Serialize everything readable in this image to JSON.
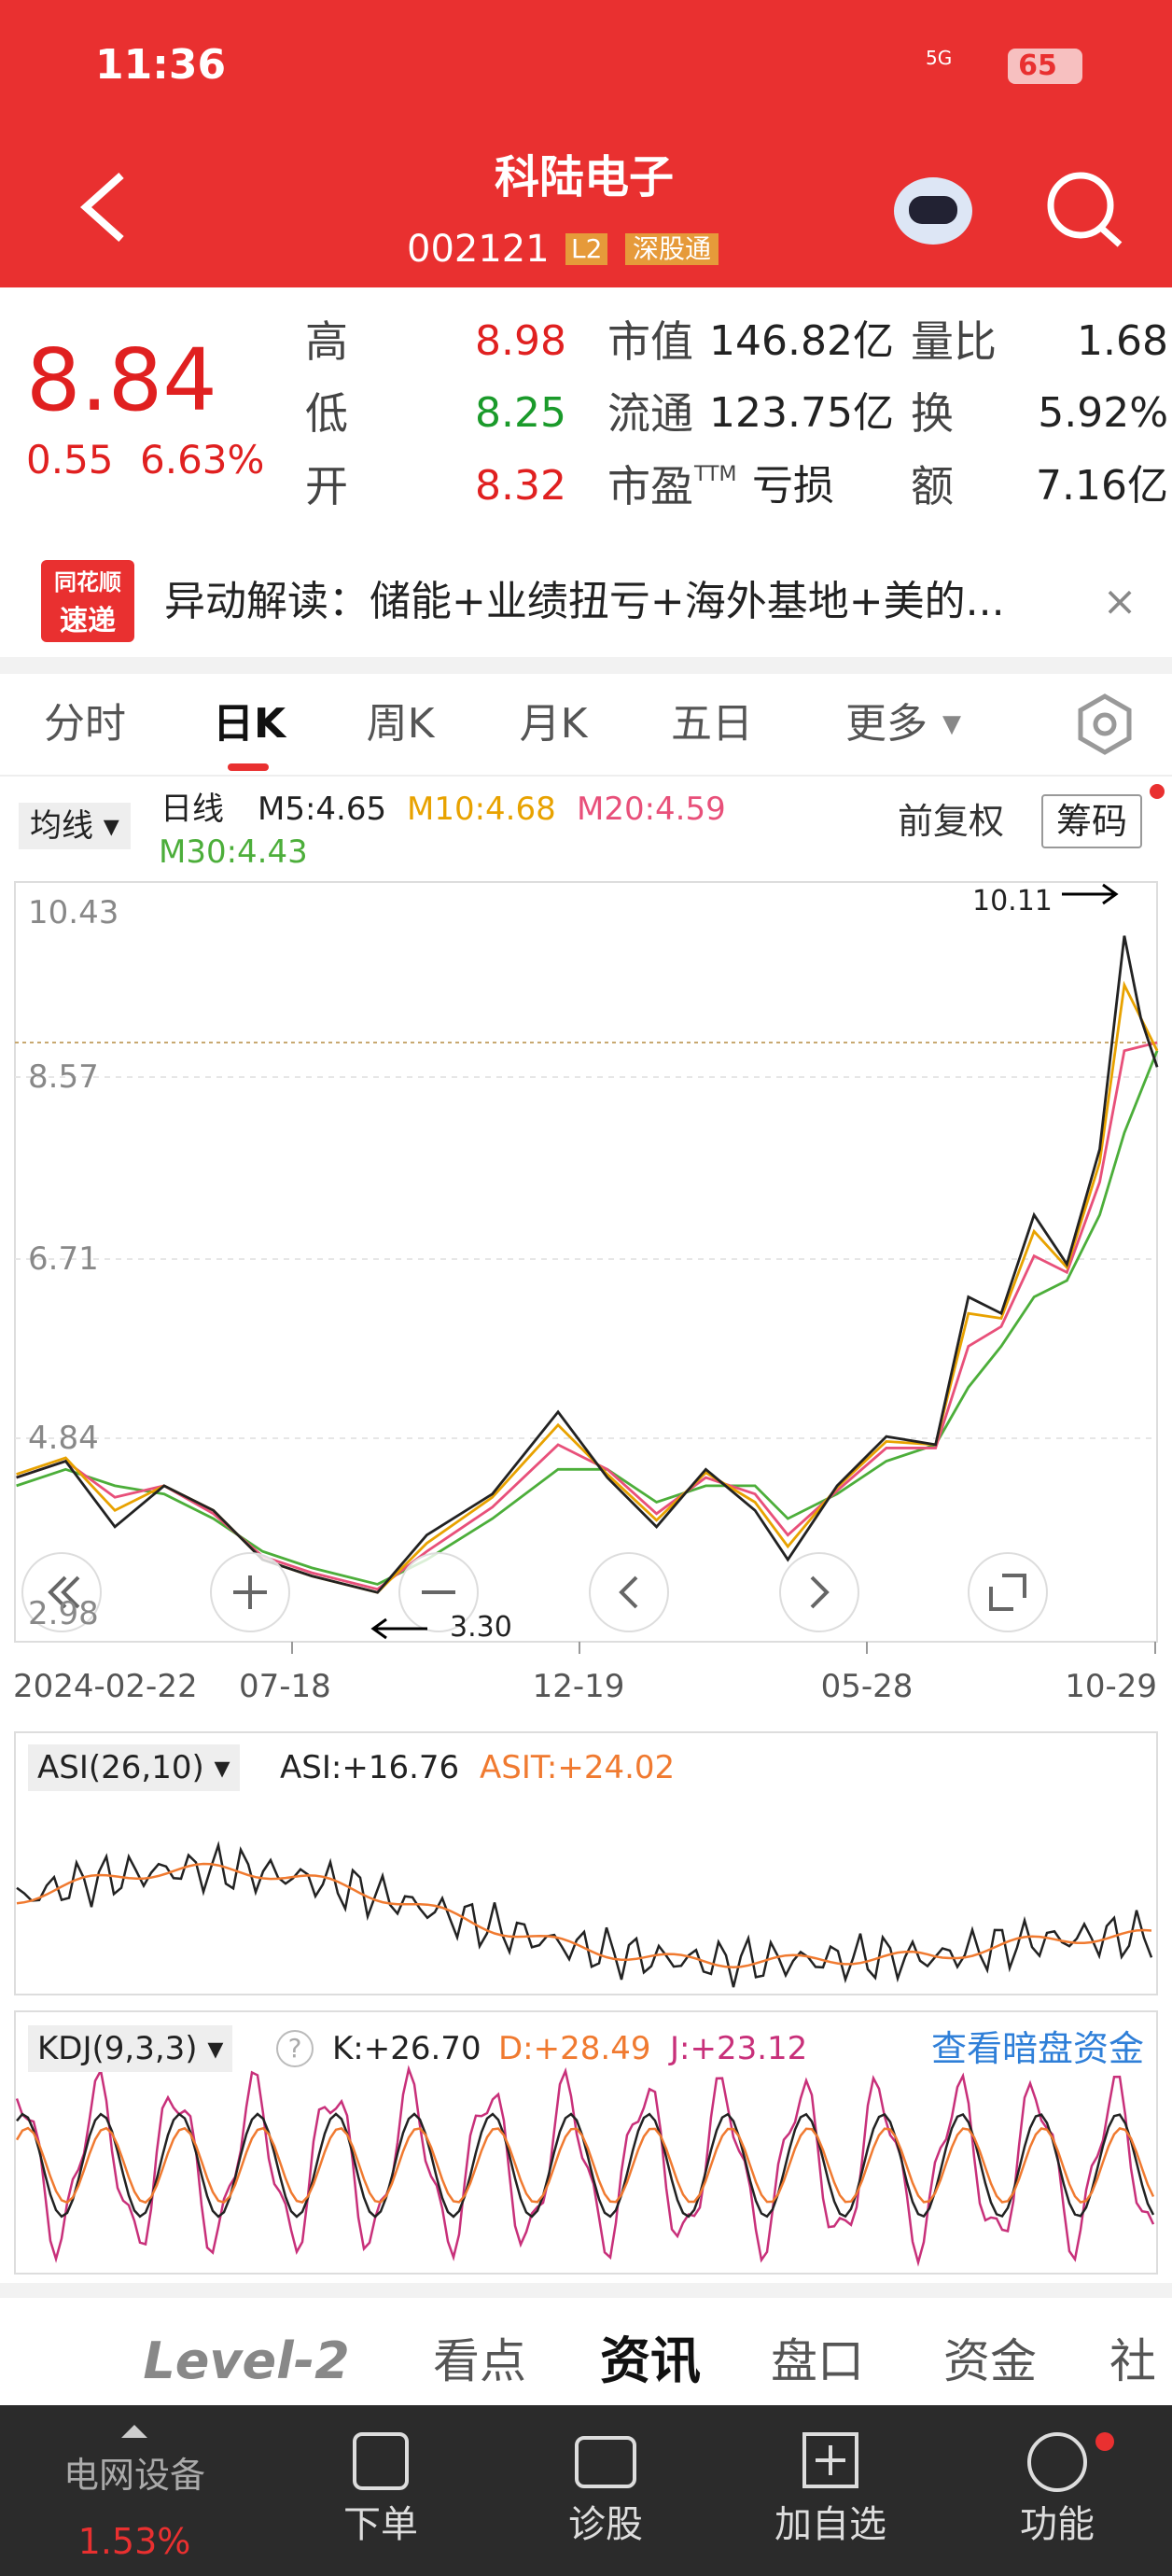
{
  "status_bar": {
    "time": "11:36",
    "network": "5G",
    "battery": "65"
  },
  "header": {
    "title": "科陆电子",
    "code": "002121",
    "badges": [
      "L2",
      "深股通"
    ]
  },
  "quote": {
    "price": "8.84",
    "change": "0.55",
    "change_pct": "6.63%",
    "rows": [
      {
        "l1": "高",
        "v1": "8.98",
        "l2": "市值",
        "v2": "146.82亿",
        "l3": "量比",
        "v3": "1.68"
      },
      {
        "l1": "低",
        "v1": "8.25",
        "l2": "流通",
        "v2": "123.75亿",
        "l3": "换",
        "v3": "5.92%"
      },
      {
        "l1": "开",
        "v1": "8.32",
        "l2": "市盈",
        "l2_sup": "TTM",
        "v2": "亏损",
        "l3": "额",
        "v3": "7.16亿"
      }
    ]
  },
  "news": {
    "logo_top": "同花顺",
    "logo_bottom": "速递",
    "text": "异动解读：储能+业绩扭亏+海外基地+美的..."
  },
  "tabs": [
    "分时",
    "日K",
    "周K",
    "月K",
    "五日",
    "更多"
  ],
  "kline": {
    "ma_button": "均线",
    "period": "日线",
    "ma": [
      "M5:4.65",
      "M10:4.68",
      "M20:4.59",
      "M30:4.43"
    ],
    "adjust": "前复权",
    "chips": "筹码",
    "price_labels": [
      "10.43",
      "8.57",
      "6.71",
      "4.84",
      "2.98"
    ],
    "high_note": "10.11",
    "low_note": "3.30",
    "dates": [
      "2024-02-22",
      "07-18",
      "12-19",
      "05-28",
      "10-29"
    ]
  },
  "asi": {
    "selector": "ASI(26,10)",
    "asi": "ASI:+16.76",
    "asit": "ASIT:+24.02"
  },
  "kdj": {
    "selector": "KDJ(9,3,3)",
    "k": "K:+26.70",
    "d": "D:+28.49",
    "j": "J:+23.12",
    "link": "查看暗盘资金"
  },
  "bottom_tabs": [
    "Level-2",
    "看点",
    "资讯",
    "盘口",
    "资金",
    "社"
  ],
  "nav": {
    "sector": "电网设备",
    "sector_pct": "1.53%",
    "items": [
      "下单",
      "诊股",
      "加自选",
      "功能"
    ]
  }
}
